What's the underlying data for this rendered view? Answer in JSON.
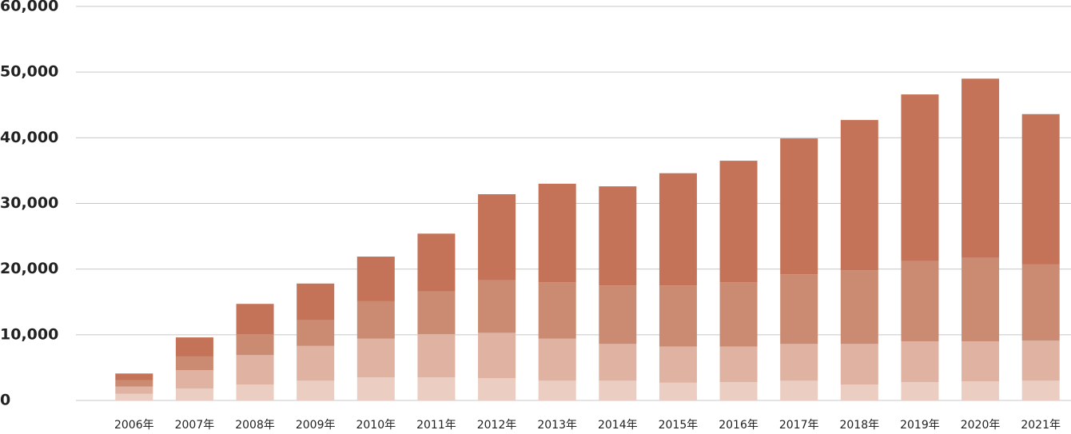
{
  "chart_data": {
    "type": "stacked_bar",
    "categories": [
      "2006年",
      "2007年",
      "2008年",
      "2009年",
      "2010年",
      "2011年",
      "2012年",
      "2013年",
      "2014年",
      "2015年",
      "2016年",
      "2017年",
      "2018年",
      "2019年",
      "2020年",
      "2021年"
    ],
    "series": [
      {
        "color": "#ebcdc2",
        "values": [
          1000,
          1800,
          2400,
          3000,
          3500,
          3500,
          3400,
          3000,
          3000,
          2700,
          2800,
          3000,
          2400,
          2800,
          2900,
          3000
        ]
      },
      {
        "color": "#dfb2a1",
        "values": [
          1100,
          2800,
          4500,
          5300,
          5900,
          6600,
          6900,
          6400,
          5600,
          5500,
          5400,
          5600,
          6200,
          6200,
          6100,
          6100
        ]
      },
      {
        "color": "#cb8a72",
        "values": [
          1000,
          2100,
          3200,
          3900,
          5700,
          6500,
          8000,
          8600,
          8900,
          9300,
          9800,
          10600,
          11200,
          12200,
          12700,
          11600
        ]
      },
      {
        "color": "#c47358",
        "values": [
          1000,
          2900,
          4600,
          5600,
          6800,
          8800,
          13100,
          15000,
          15100,
          17100,
          18500,
          20700,
          22900,
          25400,
          27300,
          22900
        ]
      }
    ],
    "ylim": [
      0,
      60000
    ],
    "yticks": [
      0,
      {
        "value": 10000,
        "label": "10,000"
      },
      {
        "value": 20000,
        "label": "20,000"
      },
      {
        "value": 30000,
        "label": "30,000"
      },
      {
        "value": 40000,
        "label": "40,000"
      },
      {
        "value": 50000,
        "label": "50,000"
      },
      {
        "value": 60000,
        "label": "60,000"
      }
    ],
    "grid": true
  }
}
